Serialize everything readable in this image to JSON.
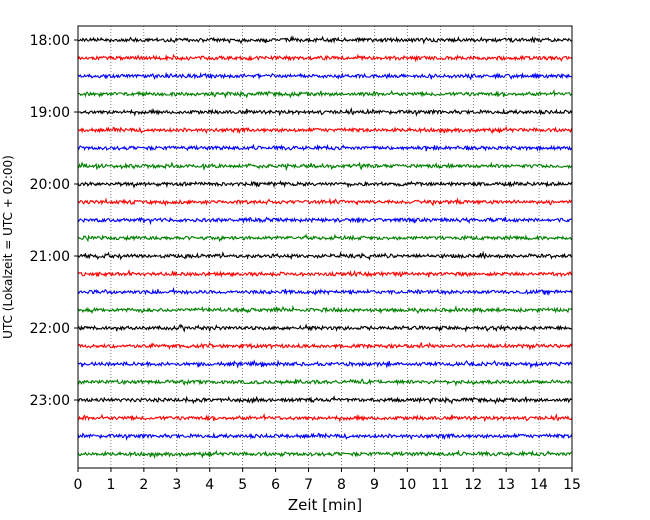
{
  "chart_data": {
    "type": "line",
    "title": "",
    "xlabel": "Zeit  [min]",
    "ylabel": "UTC (Lokalzeit = UTC + 02:00)",
    "xlim": [
      0,
      15
    ],
    "x_ticks": [
      "0",
      "1",
      "2",
      "3",
      "4",
      "5",
      "6",
      "7",
      "8",
      "9",
      "10",
      "11",
      "12",
      "13",
      "14",
      "15"
    ],
    "y_tick_labels": [
      "18:00",
      "19:00",
      "20:00",
      "21:00",
      "22:00",
      "23:00"
    ],
    "grid": "vertical dotted lines at every minute",
    "trace_interval_minutes": 15,
    "trace_colors": [
      "#000000",
      "#ff0000",
      "#0000ff",
      "#008000"
    ],
    "series": [
      {
        "start": "18:00",
        "color": "#000000"
      },
      {
        "start": "18:15",
        "color": "#ff0000"
      },
      {
        "start": "18:30",
        "color": "#0000ff"
      },
      {
        "start": "18:45",
        "color": "#008000"
      },
      {
        "start": "19:00",
        "color": "#000000"
      },
      {
        "start": "19:15",
        "color": "#ff0000"
      },
      {
        "start": "19:30",
        "color": "#0000ff"
      },
      {
        "start": "19:45",
        "color": "#008000"
      },
      {
        "start": "20:00",
        "color": "#000000"
      },
      {
        "start": "20:15",
        "color": "#ff0000"
      },
      {
        "start": "20:30",
        "color": "#0000ff"
      },
      {
        "start": "20:45",
        "color": "#008000"
      },
      {
        "start": "21:00",
        "color": "#000000"
      },
      {
        "start": "21:15",
        "color": "#ff0000"
      },
      {
        "start": "21:30",
        "color": "#0000ff"
      },
      {
        "start": "21:45",
        "color": "#008000"
      },
      {
        "start": "22:00",
        "color": "#000000"
      },
      {
        "start": "22:15",
        "color": "#ff0000"
      },
      {
        "start": "22:30",
        "color": "#0000ff"
      },
      {
        "start": "22:45",
        "color": "#008000"
      },
      {
        "start": "23:00",
        "color": "#000000"
      },
      {
        "start": "23:15",
        "color": "#ff0000"
      },
      {
        "start": "23:30",
        "color": "#0000ff"
      },
      {
        "start": "23:45",
        "color": "#008000"
      }
    ]
  }
}
